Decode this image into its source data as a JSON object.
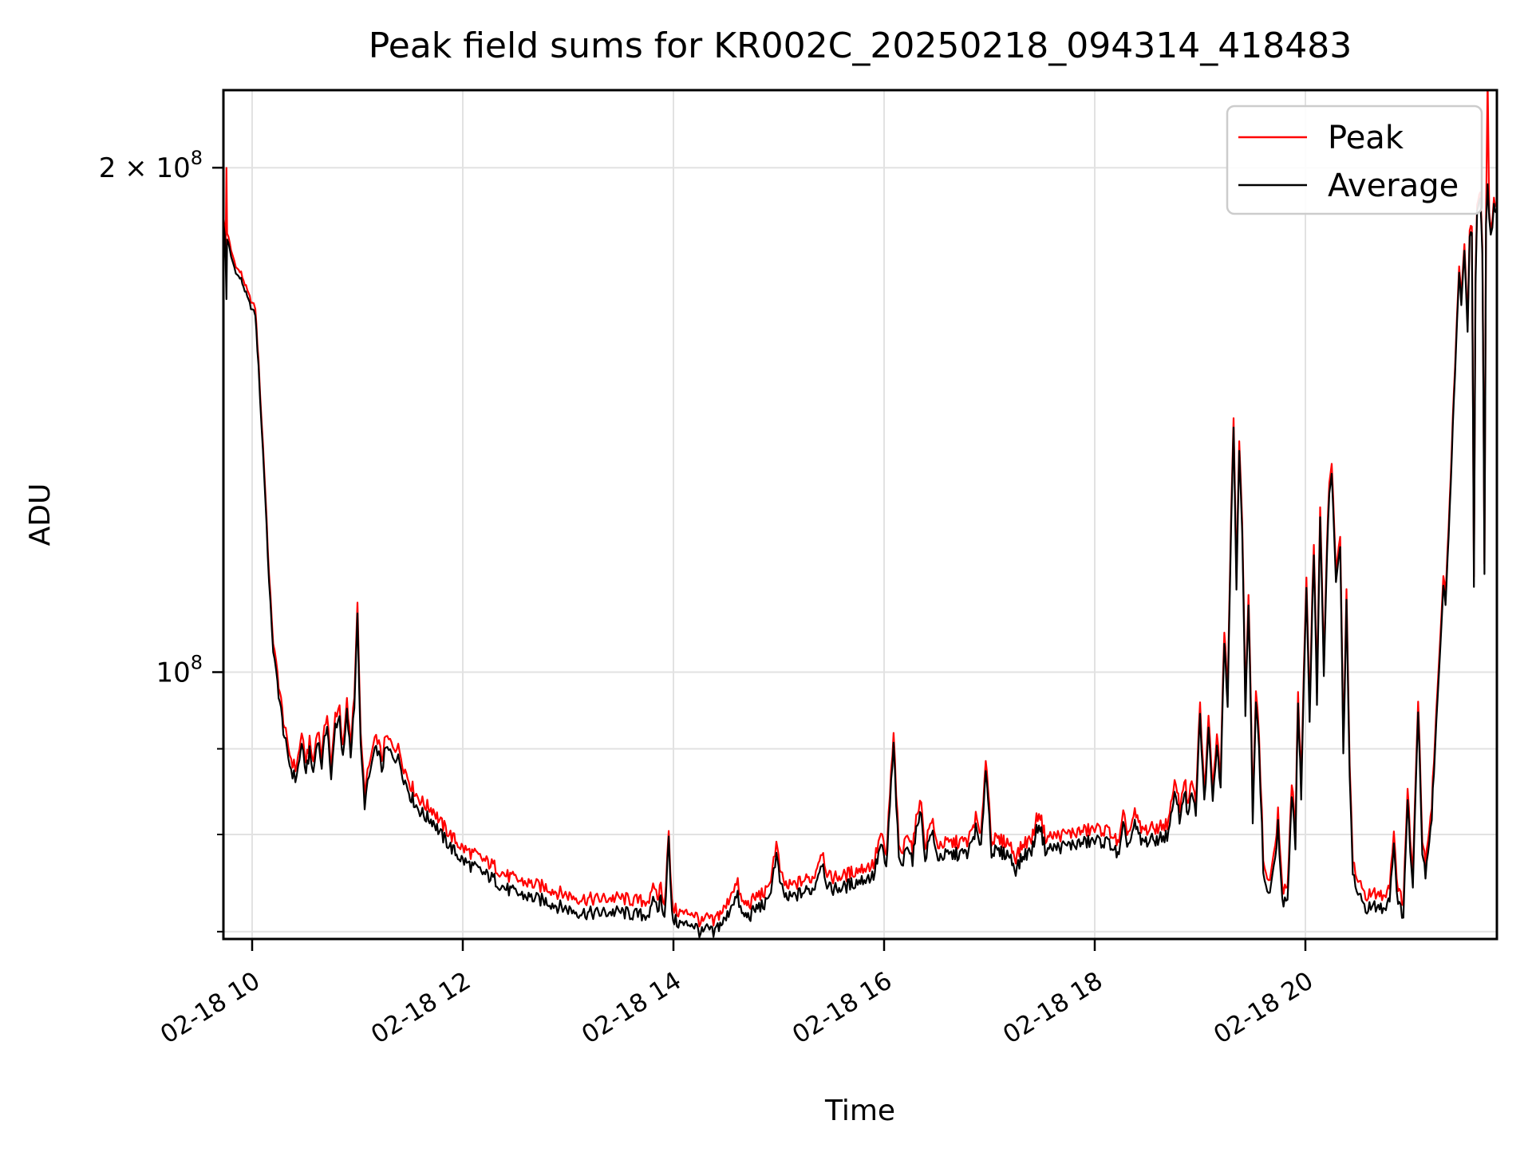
{
  "chart_data": {
    "type": "line",
    "title": "Peak field sums for KR002C_20250218_094314_418483",
    "xlabel": "Time",
    "ylabel": "ADU",
    "y_scale": "log",
    "grid": true,
    "legend_position": "upper right",
    "x_unit": "hours on 02-18",
    "xlim": [
      9.727,
      21.818
    ],
    "ylim_adu": [
      69300000,
      222500000
    ],
    "x_ticks": [
      {
        "value": 10,
        "label": "02-18 10"
      },
      {
        "value": 12,
        "label": "02-18 12"
      },
      {
        "value": 14,
        "label": "02-18 14"
      },
      {
        "value": 16,
        "label": "02-18 16"
      },
      {
        "value": 18,
        "label": "02-18 18"
      },
      {
        "value": 20,
        "label": "02-18 20"
      }
    ],
    "y_ticks_major": [
      {
        "value_adu": 200000000,
        "mantissa": "2 × 10",
        "exponent": "8"
      },
      {
        "value_adu": 100000000,
        "mantissa": "10",
        "exponent": "8"
      }
    ],
    "y_ticks_minor_adu": [
      70000000,
      80000000,
      90000000
    ],
    "values_unit_adu": 1000000,
    "t": [
      9.727,
      9.74,
      9.748,
      9.756,
      9.762,
      9.775,
      9.8,
      9.83,
      9.86,
      9.895,
      9.93,
      9.965,
      10.0,
      10.03,
      10.06,
      10.09,
      10.125,
      10.16,
      10.2,
      10.24,
      10.285,
      10.33,
      10.37,
      10.41,
      10.45,
      10.47,
      10.5,
      10.545,
      10.58,
      10.62,
      10.66,
      10.712,
      10.75,
      10.79,
      10.83,
      10.862,
      10.9,
      10.935,
      10.97,
      11.0,
      11.03,
      11.068,
      11.11,
      11.15,
      11.19,
      11.23,
      11.27,
      11.31,
      11.36,
      11.4,
      11.44,
      11.5,
      11.57,
      11.64,
      11.72,
      11.79,
      11.86,
      11.93,
      12.0,
      12.1,
      12.2,
      12.3,
      12.4,
      12.5,
      12.6,
      12.7,
      12.8,
      12.9,
      13.0,
      13.1,
      13.2,
      13.3,
      13.4,
      13.5,
      13.6,
      13.7,
      13.78,
      13.82,
      13.85,
      13.88,
      13.915,
      13.955,
      13.985,
      14.02,
      14.06,
      14.11,
      14.16,
      14.21,
      14.27,
      14.33,
      14.38,
      14.42,
      14.5,
      14.56,
      14.61,
      14.65,
      14.72,
      14.8,
      14.9,
      14.977,
      15.02,
      15.08,
      15.15,
      15.25,
      15.33,
      15.41,
      15.47,
      15.55,
      15.62,
      15.7,
      15.8,
      15.9,
      15.97,
      16.02,
      16.09,
      16.14,
      16.18,
      16.22,
      16.27,
      16.34,
      16.39,
      16.45,
      16.5,
      16.57,
      16.65,
      16.73,
      16.8,
      16.87,
      16.92,
      16.965,
      17.02,
      17.1,
      17.18,
      17.25,
      17.33,
      17.4,
      17.47,
      17.53,
      17.65,
      17.75,
      17.85,
      17.95,
      18.05,
      18.15,
      18.23,
      18.27,
      18.32,
      18.38,
      18.44,
      18.52,
      18.6,
      18.7,
      18.77,
      18.805,
      18.85,
      18.885,
      18.92,
      18.96,
      19.0,
      19.04,
      19.08,
      19.12,
      19.16,
      19.195,
      19.23,
      19.262,
      19.318,
      19.345,
      19.372,
      19.4,
      19.43,
      19.46,
      19.5,
      19.53,
      19.56,
      19.6,
      19.65,
      19.7,
      19.74,
      19.78,
      19.83,
      19.87,
      19.905,
      19.93,
      19.96,
      20.01,
      20.04,
      20.08,
      20.11,
      20.14,
      20.175,
      20.205,
      20.227,
      20.25,
      20.29,
      20.33,
      20.36,
      20.39,
      20.42,
      20.45,
      20.5,
      20.56,
      20.62,
      20.68,
      20.74,
      20.8,
      20.84,
      20.88,
      20.93,
      20.97,
      21.02,
      21.07,
      21.11,
      21.14,
      21.2,
      21.23,
      21.27,
      21.31,
      21.33,
      21.36,
      21.39,
      21.42,
      21.44,
      21.46,
      21.48,
      21.51,
      21.54,
      21.56,
      21.58,
      21.6,
      21.615,
      21.63,
      21.66,
      21.68,
      21.7,
      21.715,
      21.73,
      21.745,
      21.76,
      21.775,
      21.79,
      21.81
    ],
    "series": [
      {
        "name": "Peak",
        "color": "#ff0000",
        "values": [
          187.5,
          183.5,
          178,
          200,
          183,
          181.5,
          178.5,
          176,
          174,
          173,
          170.5,
          168,
          166,
          165,
          153.2,
          141.2,
          128.2,
          114.2,
          104.2,
          99.8,
          94.8,
          90.8,
          88.8,
          87.6,
          89.8,
          92.3,
          88.3,
          90.8,
          88.3,
          92.8,
          89.3,
          94.9,
          87.3,
          94.4,
          95.4,
          89.8,
          95.9,
          90.3,
          97.4,
          109.6,
          91.3,
          84.8,
          87.8,
          90.3,
          91.4,
          88.8,
          91.4,
          90.8,
          90.3,
          89.8,
          87.8,
          85.8,
          84.3,
          83.3,
          82.8,
          81.3,
          80.3,
          79.3,
          78.5,
          77.9,
          77.2,
          76.6,
          75.7,
          75.2,
          74.9,
          74.6,
          74.4,
          73.9,
          73.6,
          73.3,
          73.2,
          73.2,
          73.3,
          73.3,
          73.1,
          73.0,
          73.2,
          74.6,
          73.2,
          74.7,
          72.7,
          79.9,
          72.7,
          72.1,
          71.9,
          71.7,
          72.0,
          71.6,
          70.8,
          71.4,
          70.8,
          71.6,
          72.4,
          74.3,
          74.7,
          72.8,
          72.7,
          73.6,
          74.0,
          79.0,
          75.5,
          74.4,
          74.7,
          75.2,
          75.4,
          78.4,
          75.4,
          75.5,
          75.6,
          76.0,
          76.4,
          76.8,
          80.1,
          77.4,
          91.5,
          78.3,
          78.1,
          80.6,
          78.5,
          84.4,
          78.8,
          81.8,
          78.9,
          79.0,
          79.1,
          79.2,
          79.3,
          81.9,
          79.5,
          89.0,
          79.5,
          79.3,
          79.2,
          77.6,
          79.1,
          79.5,
          82.7,
          79.7,
          79.9,
          80.1,
          80.3,
          80.5,
          80.6,
          80.3,
          78.8,
          82.0,
          80.1,
          82.3,
          80.5,
          80.6,
          80.8,
          81.3,
          86.4,
          82.8,
          86.5,
          83.3,
          85.7,
          83.8,
          95.5,
          84.8,
          93.5,
          85.8,
          91.4,
          87.3,
          106.1,
          97.5,
          141.8,
          113.6,
          137.8,
          123.1,
          95.4,
          111.1,
          83.3,
          97.5,
          91.4,
          77.3,
          74.8,
          77.3,
          82.4,
          74.3,
          73.8,
          86.4,
          80.3,
          97.5,
          85.3,
          113.6,
          95.5,
          119.7,
          97.5,
          125.7,
          100.5,
          119.7,
          129.8,
          132.8,
          114.6,
          120.7,
          90.4,
          111.6,
          87.3,
          77.3,
          74.8,
          73.8,
          73.6,
          73.8,
          73.5,
          74.8,
          80.3,
          73.8,
          73.1,
          84.8,
          75.3,
          96.9,
          79.3,
          77.3,
          83.3,
          91.4,
          101.5,
          114.5,
          111.5,
          121.5,
          136.6,
          151.5,
          163.5,
          174.5,
          167.5,
          179.6,
          161.5,
          183.6,
          184.6,
          113.6,
          171.5,
          189.6,
          193.6,
          179.6,
          116.6,
          186.6,
          225,
          187.6,
          183.6,
          185.6,
          191.6,
          189.6
        ]
      },
      {
        "name": "Average",
        "color": "#000000",
        "values": [
          186,
          182,
          176,
          167,
          181.5,
          180,
          177,
          174.5,
          172.5,
          171.5,
          169,
          166.5,
          164.5,
          163.5,
          152,
          140,
          127,
          113,
          103,
          98.5,
          93.5,
          89.5,
          87.5,
          86.3,
          88.5,
          91,
          87,
          89.5,
          87,
          91.5,
          88,
          93.5,
          86,
          93,
          94,
          88.5,
          94.5,
          89,
          96,
          108,
          90,
          83.5,
          86.5,
          89,
          90,
          87.5,
          90,
          89.5,
          89,
          88.5,
          86.5,
          84.5,
          83,
          82,
          81.5,
          80,
          79,
          78,
          77.2,
          76.5,
          75.8,
          75.2,
          74.3,
          73.8,
          73.5,
          73.2,
          73.0,
          72.5,
          72.2,
          71.9,
          71.8,
          71.8,
          71.9,
          71.9,
          71.7,
          71.6,
          71.8,
          73.3,
          72.0,
          73.4,
          71.5,
          79.3,
          71.5,
          71.0,
          70.8,
          70.6,
          70.9,
          70.5,
          69.8,
          70.3,
          69.7,
          70.5,
          71.2,
          73.0,
          73.4,
          71.6,
          71.5,
          72.4,
          72.8,
          77.8,
          74.3,
          73.2,
          73.5,
          74.0,
          74.2,
          77.2,
          74.2,
          74.3,
          74.4,
          74.8,
          75.2,
          75.6,
          78.9,
          76.2,
          90.3,
          77.0,
          76.8,
          79.3,
          77.2,
          83.1,
          77.5,
          80.5,
          77.6,
          77.7,
          77.8,
          77.9,
          78.0,
          80.6,
          78.2,
          87.8,
          78.2,
          78.0,
          77.9,
          76.3,
          77.8,
          78.2,
          81.4,
          78.4,
          78.6,
          78.8,
          79.0,
          79.2,
          79.3,
          79.0,
          77.5,
          80.7,
          78.8,
          81.0,
          79.2,
          79.3,
          79.5,
          80.0,
          85.0,
          81.5,
          85.1,
          82.0,
          84.3,
          82.5,
          94.0,
          83.5,
          92.0,
          84.5,
          90.0,
          86.0,
          104.5,
          96.0,
          140.0,
          112.0,
          136.0,
          121.5,
          94.0,
          109.5,
          82.0,
          96.0,
          90.0,
          76.0,
          73.5,
          76.0,
          81.0,
          73.0,
          72.5,
          85.0,
          79.0,
          96.0,
          84.0,
          112.0,
          94.0,
          118.0,
          96.0,
          124.0,
          99.0,
          118.0,
          128.0,
          131.0,
          113.0,
          119.0,
          89.0,
          110.0,
          86.0,
          76.0,
          73.5,
          72.5,
          72.3,
          72.5,
          72.2,
          73.5,
          79.0,
          72.5,
          71.8,
          83.5,
          74.0,
          95.5,
          78.0,
          76.0,
          82.0,
          90.0,
          100,
          113,
          110,
          120,
          135,
          150,
          162,
          173,
          166,
          178,
          160,
          182,
          183,
          112,
          170,
          188,
          192,
          178,
          115,
          185,
          195,
          186,
          182,
          184,
          190,
          188
        ]
      }
    ],
    "style": {
      "grid_color": "#e2e2e2",
      "spine_color": "#000000",
      "legend_border_color": "#cccccc",
      "noise_band_pct": {
        "low": 0.95,
        "mid": 0.5,
        "high": 0.35
      }
    }
  }
}
